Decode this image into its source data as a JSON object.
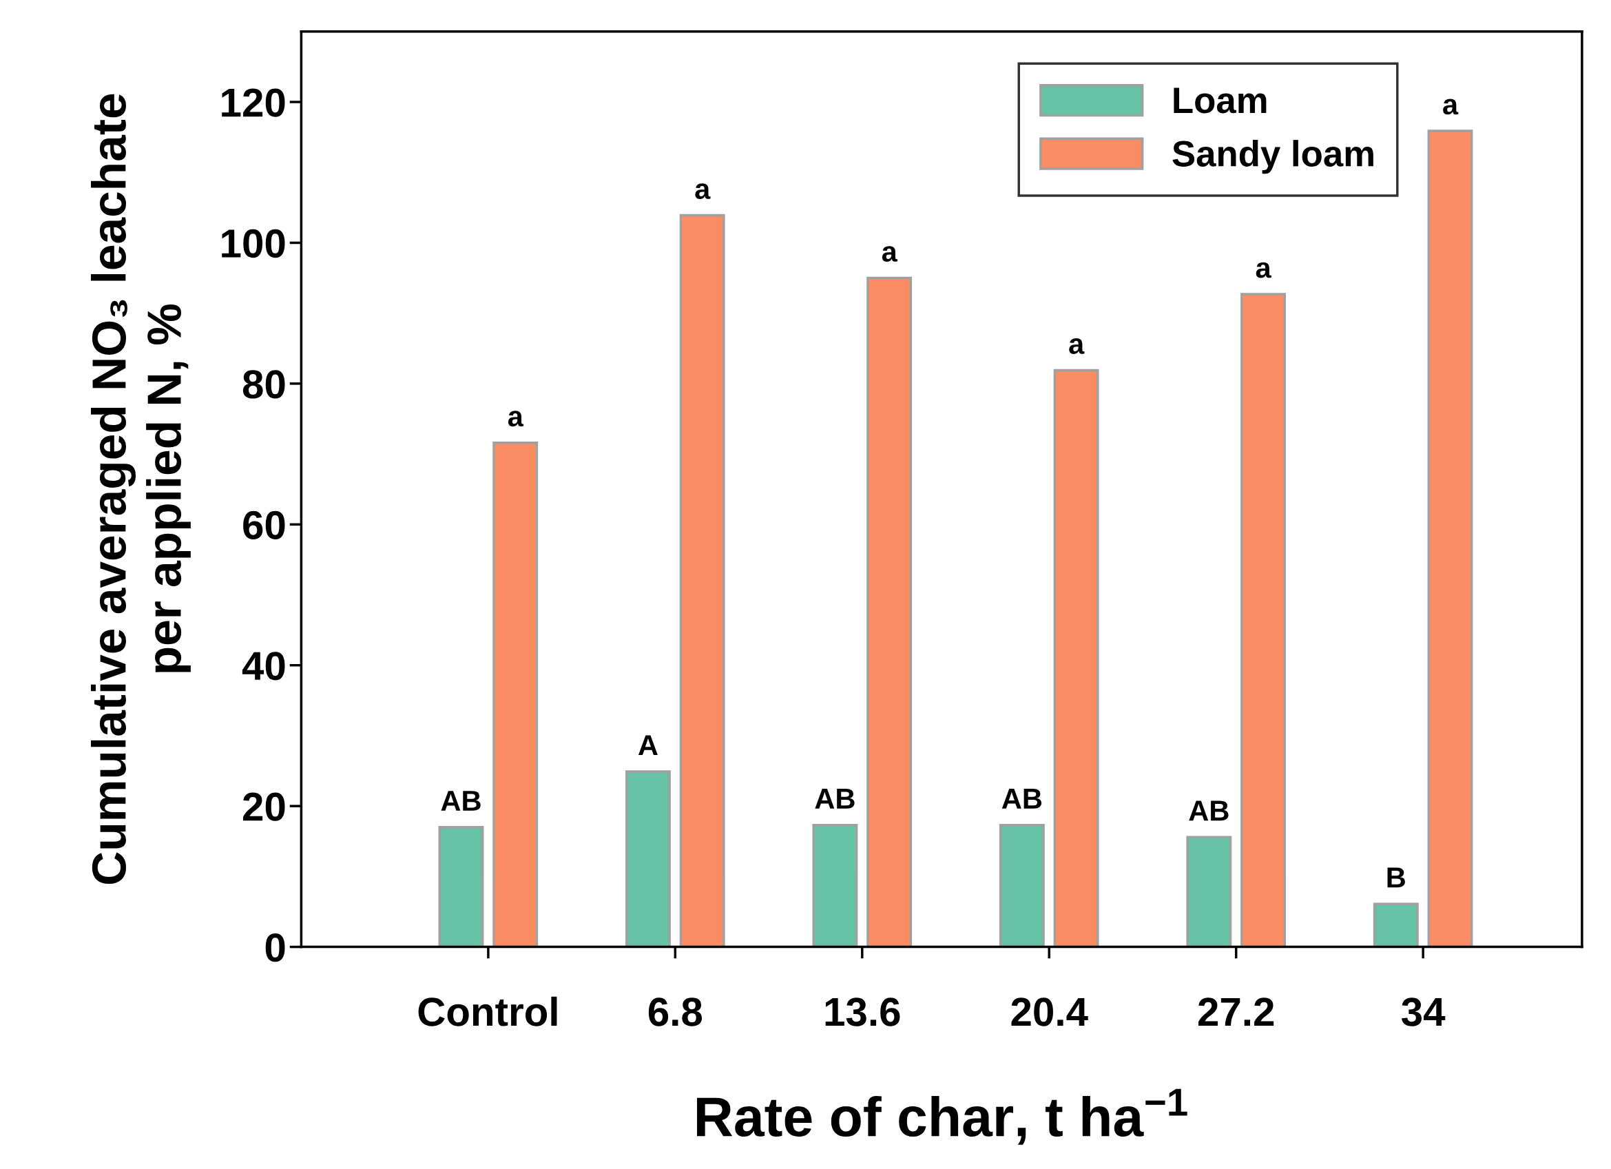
{
  "chart_data": {
    "type": "bar",
    "xlabel": "Rate of char, t ha$^{−1}$",
    "ylabel": "Cumulative averaged NO₃ leachate\nper applied N, %",
    "categories": [
      "Control",
      "6.8",
      "13.6",
      "20.4",
      "27.2",
      "34"
    ],
    "series": [
      {
        "name": "Loam",
        "color": "#66c2a5",
        "values": [
          17.0,
          24.9,
          17.3,
          17.3,
          15.6,
          6.1
        ],
        "value_labels": [
          "AB",
          "A",
          "AB",
          "AB",
          "AB",
          "B"
        ]
      },
      {
        "name": "Sandy loam",
        "color": "#fc8d62",
        "values": [
          71.6,
          103.9,
          95.0,
          81.9,
          92.7,
          115.9
        ],
        "value_labels": [
          "a",
          "a",
          "a",
          "a",
          "a",
          "a"
        ]
      }
    ],
    "ylim": [
      0,
      130
    ],
    "yticks": [
      0,
      20,
      40,
      60,
      80,
      100,
      120
    ],
    "legend": "top right",
    "grid": false
  }
}
